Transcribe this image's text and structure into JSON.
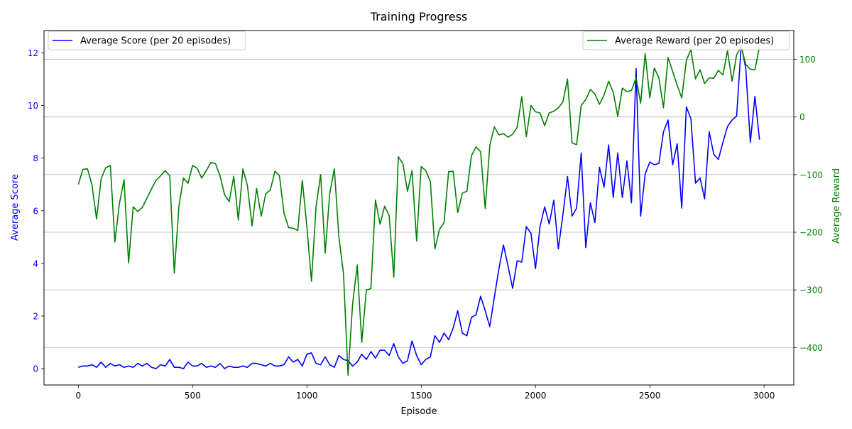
{
  "chart_data": {
    "type": "line",
    "title": "Training Progress",
    "xlabel": "Episode",
    "ylabel": "Average Score",
    "ylabel_right": "Average Reward",
    "xlim": [
      -150,
      3130
    ],
    "ylim": [
      -0.62,
      12.85
    ],
    "ylim_right": [
      -465,
      150
    ],
    "xticks": [
      0,
      500,
      1000,
      1500,
      2000,
      2500,
      3000
    ],
    "yticks": [
      0,
      2,
      4,
      6,
      8,
      10,
      12
    ],
    "yticks_right": [
      -400,
      -300,
      -200,
      -100,
      0,
      100
    ],
    "grid": "horizontal lines at right-axis ticks",
    "legend_left": "top-left",
    "legend_right": "top-right",
    "colors": {
      "score": "#0000ff",
      "reward": "#008000",
      "grid": "#b0b0b0",
      "axis": "#000000"
    },
    "x": [
      0,
      20,
      40,
      60,
      80,
      100,
      120,
      140,
      160,
      180,
      200,
      220,
      240,
      260,
      280,
      300,
      320,
      340,
      360,
      380,
      400,
      420,
      440,
      460,
      480,
      500,
      520,
      540,
      560,
      580,
      600,
      620,
      640,
      660,
      680,
      700,
      720,
      740,
      760,
      780,
      800,
      820,
      840,
      860,
      880,
      900,
      920,
      940,
      960,
      980,
      1000,
      1020,
      1040,
      1060,
      1080,
      1100,
      1120,
      1140,
      1160,
      1180,
      1200,
      1220,
      1240,
      1260,
      1280,
      1300,
      1320,
      1340,
      1360,
      1380,
      1400,
      1420,
      1440,
      1460,
      1480,
      1500,
      1520,
      1540,
      1560,
      1580,
      1600,
      1620,
      1640,
      1660,
      1680,
      1700,
      1720,
      1740,
      1760,
      1780,
      1800,
      1820,
      1840,
      1860,
      1880,
      1900,
      1920,
      1940,
      1960,
      1980,
      2000,
      2020,
      2040,
      2060,
      2080,
      2100,
      2120,
      2140,
      2160,
      2180,
      2200,
      2220,
      2240,
      2260,
      2280,
      2300,
      2320,
      2340,
      2360,
      2380,
      2400,
      2420,
      2440,
      2460,
      2480,
      2500,
      2520,
      2540,
      2560,
      2580,
      2600,
      2620,
      2640,
      2660,
      2680,
      2700,
      2720,
      2740,
      2760,
      2780,
      2800,
      2820,
      2840,
      2860,
      2880,
      2900,
      2920,
      2940,
      2960,
      2980
    ],
    "series": [
      {
        "name": "Average Score (per 20 episodes)",
        "axis": "left",
        "color": "#0000ff",
        "values": [
          0.05,
          0.1,
          0.1,
          0.15,
          0.05,
          0.25,
          0.05,
          0.2,
          0.1,
          0.15,
          0.05,
          0.1,
          0.05,
          0.2,
          0.1,
          0.2,
          0.05,
          0.0,
          0.15,
          0.1,
          0.35,
          0.05,
          0.05,
          0.0,
          0.25,
          0.1,
          0.1,
          0.2,
          0.05,
          0.1,
          0.05,
          0.2,
          0.0,
          0.1,
          0.05,
          0.05,
          0.1,
          0.05,
          0.2,
          0.2,
          0.15,
          0.1,
          0.2,
          0.1,
          0.1,
          0.15,
          0.45,
          0.25,
          0.35,
          0.1,
          0.55,
          0.6,
          0.2,
          0.15,
          0.45,
          0.15,
          0.05,
          0.5,
          0.35,
          0.3,
          0.1,
          0.25,
          0.55,
          0.35,
          0.65,
          0.4,
          0.7,
          0.7,
          0.5,
          0.95,
          0.45,
          0.2,
          0.3,
          1.05,
          0.5,
          0.15,
          0.35,
          0.45,
          1.25,
          1.0,
          1.35,
          1.1,
          1.55,
          2.2,
          1.35,
          1.25,
          1.95,
          2.05,
          2.75,
          2.2,
          1.6,
          2.7,
          3.8,
          4.7,
          3.9,
          3.05,
          4.1,
          4.05,
          5.4,
          5.15,
          3.8,
          5.4,
          6.15,
          5.5,
          6.4,
          4.55,
          5.85,
          7.3,
          5.8,
          6.1,
          8.2,
          4.6,
          6.3,
          5.55,
          7.65,
          6.9,
          8.5,
          6.5,
          8.2,
          6.5,
          7.9,
          6.3,
          11.4,
          5.8,
          7.4,
          7.85,
          7.75,
          7.8,
          9.0,
          9.45,
          7.75,
          8.55,
          6.1,
          9.95,
          9.5,
          7.05,
          7.25,
          6.45,
          9.0,
          8.15,
          7.95,
          8.6,
          9.2,
          9.45,
          9.6,
          12.3,
          11.4,
          8.6,
          10.35,
          8.7
        ]
      },
      {
        "name": "Average Reward (per 20 episodes)",
        "axis": "right",
        "color": "#008000",
        "values": [
          -117,
          -91,
          -90,
          -118,
          -177,
          -107,
          -88,
          -84,
          -217,
          -150,
          -109,
          -253,
          -156,
          -164,
          -157,
          -141,
          -125,
          -110,
          -102,
          -93,
          -102,
          -271,
          -155,
          -106,
          -115,
          -84,
          -89,
          -106,
          -93,
          -79,
          -81,
          -102,
          -135,
          -147,
          -103,
          -179,
          -90,
          -119,
          -189,
          -124,
          -172,
          -133,
          -127,
          -94,
          -102,
          -167,
          -192,
          -193,
          -197,
          -110,
          -190,
          -285,
          -156,
          -100,
          -236,
          -133,
          -90,
          -208,
          -272,
          -448,
          -325,
          -257,
          -391,
          -300,
          -298,
          -144,
          -186,
          -155,
          -171,
          -278,
          -69,
          -81,
          -129,
          -93,
          -215,
          -86,
          -93,
          -112,
          -229,
          -195,
          -183,
          -95,
          -94,
          -166,
          -132,
          -129,
          -67,
          -52,
          -60,
          -159,
          -50,
          -17,
          -31,
          -29,
          -35,
          -30,
          -18,
          35,
          -34,
          20,
          9,
          7,
          -15,
          7,
          10,
          16,
          26,
          66,
          -45,
          -48,
          20,
          30,
          48,
          40,
          22,
          38,
          62,
          43,
          1,
          50,
          44,
          46,
          68,
          24,
          110,
          33,
          85,
          68,
          16,
          103,
          79,
          55,
          33,
          98,
          117,
          66,
          82,
          58,
          68,
          67,
          81,
          73,
          115,
          62,
          108,
          122,
          91,
          83,
          82,
          122
        ]
      }
    ]
  }
}
